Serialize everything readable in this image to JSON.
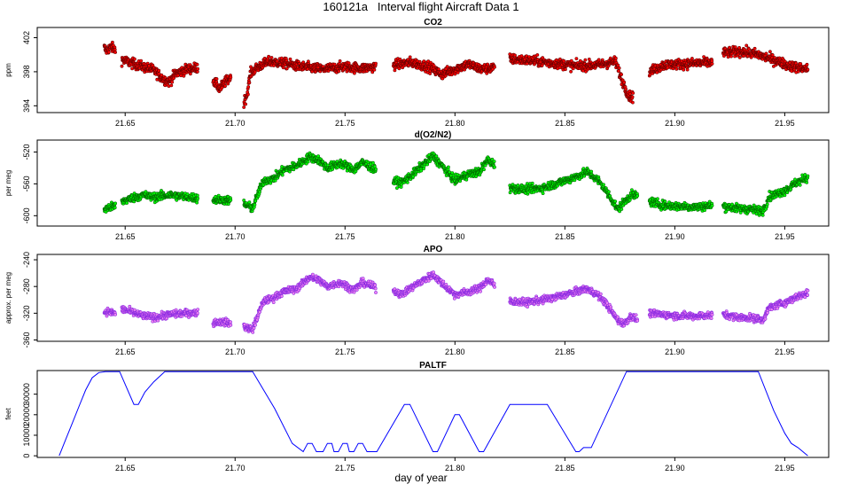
{
  "figure": {
    "title": "160121a   Interval flight Aircraft Data 1",
    "xlabel": "day of year"
  },
  "chart_data": [
    {
      "type": "scatter",
      "title": "CO2",
      "xlabel": "",
      "ylabel": "ppm",
      "xlim": [
        21.61,
        21.97
      ],
      "ylim": [
        393.2,
        403.2
      ],
      "xticks": [
        21.65,
        21.7,
        21.75,
        21.8,
        21.85,
        21.9,
        21.95
      ],
      "xtick_labels": [
        "21.65",
        "21.70",
        "21.75",
        "21.80",
        "21.85",
        "21.90",
        "21.95"
      ],
      "yticks": [
        394,
        398,
        402
      ],
      "ytick_labels": [
        "394",
        "398",
        "402"
      ],
      "color": "#ff0000",
      "edge_color": "#6b0000",
      "series": [
        {
          "name": "CO2",
          "noise": 0.55,
          "segments": [
            {
              "x": [
                21.6405,
                21.6415,
                21.6435,
                21.6455
              ],
              "y": [
                400.8,
                400.5,
                400.9,
                400.6
              ]
            },
            {
              "x": [
                21.6485,
                21.653,
                21.658,
                21.663,
                21.667,
                21.67,
                21.673,
                21.678,
                21.683
              ],
              "y": [
                399.4,
                399.0,
                398.6,
                398.2,
                397.2,
                396.8,
                397.8,
                398.3,
                398.5
              ]
            },
            {
              "x": [
                21.69,
                21.693,
                21.6955,
                21.698
              ],
              "y": [
                397.0,
                396.0,
                396.8,
                397.3
              ]
            },
            {
              "x": [
                21.704,
                21.7055,
                21.707,
                21.709,
                21.712,
                21.716,
                21.722,
                21.73,
                21.74,
                21.75,
                21.758,
                21.764
              ],
              "y": [
                394.4,
                395.4,
                397.8,
                398.3,
                398.8,
                399.2,
                399.0,
                398.6,
                398.3,
                398.6,
                398.4,
                398.6
              ]
            },
            {
              "x": [
                21.772,
                21.78,
                21.788,
                21.794,
                21.8,
                21.806,
                21.812,
                21.818
              ],
              "y": [
                398.8,
                399.1,
                398.6,
                397.7,
                398.3,
                398.9,
                398.3,
                398.5
              ]
            },
            {
              "x": [
                21.825,
                21.835,
                21.845,
                21.855,
                21.865,
                21.873,
                21.876,
                21.879,
                21.881
              ],
              "y": [
                399.5,
                399.3,
                399.0,
                398.7,
                398.8,
                399.2,
                397.0,
                395.2,
                395.0
              ]
            },
            {
              "x": [
                21.8885,
                21.895,
                21.902,
                21.91,
                21.917
              ],
              "y": [
                398.0,
                398.8,
                398.9,
                399.0,
                399.1
              ]
            },
            {
              "x": [
                21.922,
                21.93,
                21.938,
                21.945,
                21.952,
                21.9605
              ],
              "y": [
                400.2,
                400.4,
                400.0,
                399.4,
                398.7,
                398.3
              ]
            }
          ]
        }
      ]
    },
    {
      "type": "scatter",
      "title": "d(O2/N2)",
      "xlabel": "",
      "ylabel": "per meg",
      "xlim": [
        21.61,
        21.97
      ],
      "ylim": [
        -613,
        -505
      ],
      "xticks": [
        21.65,
        21.7,
        21.75,
        21.8,
        21.85,
        21.9,
        21.95
      ],
      "xtick_labels": [
        "21.65",
        "21.70",
        "21.75",
        "21.80",
        "21.85",
        "21.90",
        "21.95"
      ],
      "yticks": [
        -600,
        -560,
        -520
      ],
      "ytick_labels": [
        "-600",
        "-560",
        "-520"
      ],
      "color": "#00ff00",
      "edge_color": "#006b00",
      "series": [
        {
          "name": "d(O2/N2)",
          "noise": 5,
          "segments": [
            {
              "x": [
                21.6405,
                21.6425,
                21.6455
              ],
              "y": [
                -592,
                -590,
                -588
              ]
            },
            {
              "x": [
                21.6485,
                21.653,
                21.658,
                21.663,
                21.67,
                21.677,
                21.683
              ],
              "y": [
                -582,
                -578,
                -574,
                -577,
                -574,
                -576,
                -578
              ]
            },
            {
              "x": [
                21.69,
                21.694,
                21.698
              ],
              "y": [
                -580,
                -580,
                -581
              ]
            },
            {
              "x": [
                21.704,
                21.708,
                21.7105,
                21.713,
                21.717,
                21.722,
                21.728,
                21.734,
                21.738,
                21.742,
                21.748,
                21.754,
                21.758,
                21.764
              ],
              "y": [
                -585,
                -591,
                -572,
                -556,
                -554,
                -543,
                -537,
                -526,
                -530,
                -540,
                -534,
                -542,
                -533,
                -542
              ]
            },
            {
              "x": [
                21.772,
                21.776,
                21.78,
                21.786,
                21.79,
                21.795,
                21.8,
                21.806,
                21.811,
                21.815,
                21.818
              ],
              "y": [
                -557,
                -558,
                -550,
                -535,
                -525,
                -540,
                -556,
                -548,
                -545,
                -530,
                -536
              ]
            },
            {
              "x": [
                21.825,
                21.832,
                21.84,
                21.848,
                21.855,
                21.86,
                21.865,
                21.868,
                21.871,
                21.874,
                21.877,
                21.88,
                21.883
              ],
              "y": [
                -565,
                -567,
                -565,
                -558,
                -551,
                -545,
                -555,
                -566,
                -578,
                -592,
                -583,
                -574,
                -575
              ]
            },
            {
              "x": [
                21.8885,
                21.895,
                21.902,
                21.91,
                21.917
              ],
              "y": [
                -582,
                -587,
                -588,
                -589,
                -587
              ]
            },
            {
              "x": [
                21.922,
                21.929,
                21.935,
                21.94,
                21.943,
                21.947,
                21.951,
                21.955,
                21.9605
              ],
              "y": [
                -588,
                -591,
                -592,
                -594,
                -576,
                -572,
                -567,
                -559,
                -552
              ]
            }
          ]
        }
      ]
    },
    {
      "type": "scatter",
      "title": "APO",
      "xlabel": "",
      "ylabel": "approx. per meg",
      "xlim": [
        21.61,
        21.97
      ],
      "ylim": [
        -362,
        -232
      ],
      "xticks": [
        21.65,
        21.7,
        21.75,
        21.8,
        21.85,
        21.9,
        21.95
      ],
      "xtick_labels": [
        "21.65",
        "21.70",
        "21.75",
        "21.80",
        "21.85",
        "21.90",
        "21.95"
      ],
      "yticks": [
        -360,
        -320,
        -280,
        -240
      ],
      "ytick_labels": [
        "-360",
        "-320",
        "-280",
        "-240"
      ],
      "color": "#ee82ee",
      "edge_color": "#8a2be2",
      "series": [
        {
          "name": "APO",
          "noise": 5,
          "segments": [
            {
              "x": [
                21.6405,
                21.6425,
                21.6455
              ],
              "y": [
                -318,
                -318,
                -320
              ]
            },
            {
              "x": [
                21.6485,
                21.653,
                21.658,
                21.664,
                21.67,
                21.677,
                21.683
              ],
              "y": [
                -314,
                -318,
                -324,
                -326,
                -322,
                -320,
                -319
              ]
            },
            {
              "x": [
                21.69,
                21.694,
                21.698
              ],
              "y": [
                -334,
                -333,
                -335
              ]
            },
            {
              "x": [
                21.704,
                21.708,
                21.7105,
                21.713,
                21.717,
                21.722,
                21.728,
                21.734,
                21.738,
                21.742,
                21.748,
                21.754,
                21.758,
                21.764
              ],
              "y": [
                -340,
                -344,
                -322,
                -302,
                -298,
                -288,
                -283,
                -266,
                -270,
                -280,
                -274,
                -285,
                -274,
                -282
              ]
            },
            {
              "x": [
                21.772,
                21.776,
                21.78,
                21.786,
                21.79,
                21.795,
                21.8,
                21.806,
                21.811,
                21.815,
                21.818
              ],
              "y": [
                -286,
                -292,
                -282,
                -270,
                -262,
                -278,
                -292,
                -288,
                -283,
                -270,
                -278
              ]
            },
            {
              "x": [
                21.825,
                21.832,
                21.84,
                21.848,
                21.855,
                21.86,
                21.865,
                21.868,
                21.871,
                21.874,
                21.877,
                21.88,
                21.883
              ],
              "y": [
                -302,
                -304,
                -300,
                -294,
                -288,
                -283,
                -293,
                -302,
                -316,
                -330,
                -336,
                -324,
                -330
              ]
            },
            {
              "x": [
                21.8885,
                21.895,
                21.902,
                21.91,
                21.917
              ],
              "y": [
                -320,
                -322,
                -324,
                -324,
                -323
              ]
            },
            {
              "x": [
                21.922,
                21.929,
                21.935,
                21.94,
                21.943,
                21.947,
                21.951,
                21.955,
                21.9605
              ],
              "y": [
                -322,
                -326,
                -327,
                -330,
                -312,
                -307,
                -303,
                -296,
                -290
              ]
            }
          ]
        }
      ]
    },
    {
      "type": "line",
      "title": "PALTF",
      "xlabel": "day of year",
      "ylabel": "feet",
      "xlim": [
        21.61,
        21.97
      ],
      "ylim": [
        -800,
        41500
      ],
      "xticks": [
        21.65,
        21.7,
        21.75,
        21.8,
        21.85,
        21.9,
        21.95
      ],
      "xtick_labels": [
        "21.65",
        "21.70",
        "21.75",
        "21.80",
        "21.85",
        "21.90",
        "21.95"
      ],
      "yticks": [
        0,
        10000,
        20000,
        30000
      ],
      "ytick_labels": [
        "0",
        "10000",
        "20000",
        "30000"
      ],
      "color": "#0000ff",
      "series": [
        {
          "name": "PALTF",
          "x": [
            21.62,
            21.623,
            21.626,
            21.629,
            21.632,
            21.635,
            21.638,
            21.641,
            21.6475,
            21.654,
            21.656,
            21.659,
            21.663,
            21.668,
            21.684,
            21.708,
            21.718,
            21.726,
            21.731,
            21.733,
            21.735,
            21.737,
            21.738,
            21.74,
            21.742,
            21.744,
            21.745,
            21.747,
            21.749,
            21.751,
            21.752,
            21.754,
            21.756,
            21.758,
            21.76,
            21.762,
            21.7645,
            21.777,
            21.7795,
            21.79,
            21.792,
            21.8,
            21.802,
            21.811,
            21.813,
            21.825,
            21.842,
            21.855,
            21.8565,
            21.8585,
            21.862,
            21.878,
            21.938,
            21.945,
            21.95,
            21.953,
            21.956,
            21.9605
          ],
          "y": [
            0,
            8000,
            16000,
            24000,
            32000,
            38000,
            40500,
            41000,
            41000,
            25000,
            25000,
            31000,
            36000,
            41000,
            41000,
            41000,
            23000,
            6000,
            2000,
            6000,
            6000,
            2000,
            2000,
            2000,
            6000,
            6000,
            2000,
            2000,
            6000,
            6000,
            2000,
            2000,
            6000,
            6000,
            2000,
            2000,
            2000,
            25000,
            25000,
            2000,
            2000,
            20000,
            20000,
            2000,
            2000,
            25000,
            25000,
            2000,
            2000,
            4000,
            4000,
            41000,
            41000,
            22000,
            11000,
            6000,
            4000,
            0
          ]
        }
      ]
    }
  ]
}
